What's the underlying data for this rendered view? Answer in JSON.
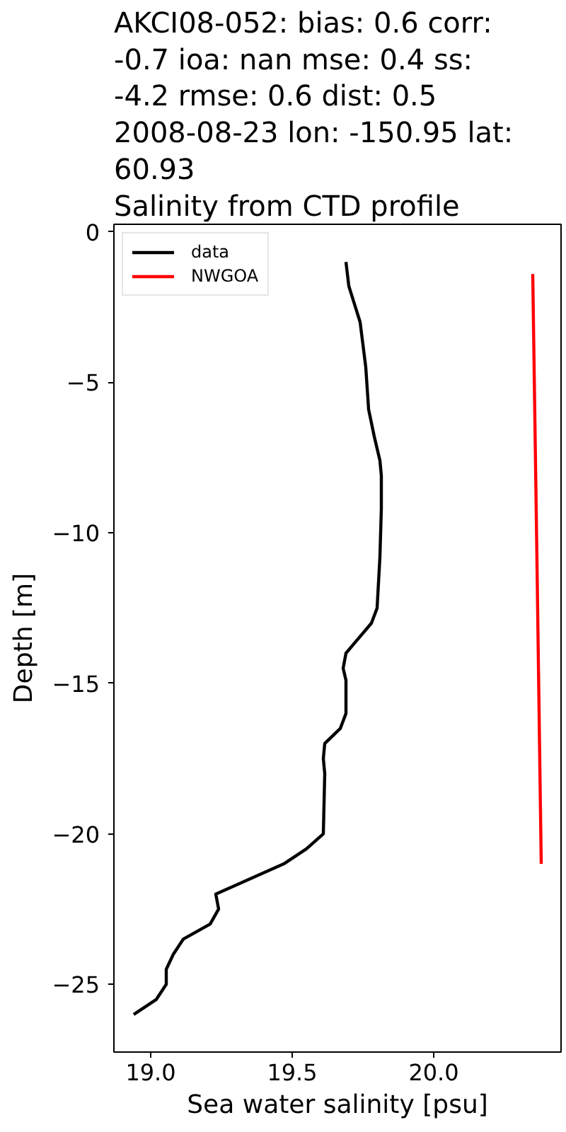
{
  "chart_data": {
    "type": "line",
    "title": "AKCI08-052: bias: 0.6  corr:\n-0.7  ioa: nan  mse: 0.4  ss:\n-4.2  rmse: 0.6  dist: 0.5\n2008-08-23 lon: -150.95 lat:\n60.93\nSalinity from CTD profile",
    "xlabel": "Sea water salinity [psu]",
    "ylabel": "Depth [m]",
    "series": [
      {
        "name": "data",
        "color": "#000000",
        "x": [
          19.69,
          19.7,
          19.715,
          19.74,
          19.76,
          19.77,
          19.79,
          19.81,
          19.815,
          19.815,
          19.81,
          19.8,
          19.78,
          19.69,
          19.68,
          19.69,
          19.69,
          19.67,
          19.615,
          19.61,
          19.615,
          19.61,
          19.55,
          19.47,
          19.23,
          19.24,
          19.21,
          19.115,
          19.08,
          19.055,
          19.055,
          19.02,
          18.94
        ],
        "values": [
          -1.0,
          -1.8,
          -2.25,
          -3.0,
          -4.5,
          -5.9,
          -6.8,
          -7.6,
          -8.1,
          -9.2,
          -10.8,
          -12.5,
          -13.0,
          -14.0,
          -14.5,
          -14.9,
          -16.0,
          -16.5,
          -17.0,
          -17.5,
          -18.0,
          -20.0,
          -20.5,
          -21.0,
          -22.0,
          -22.5,
          -23.0,
          -23.5,
          -24.0,
          -24.5,
          -25.0,
          -25.5,
          -26.0
        ]
      },
      {
        "name": "NWGOA",
        "color": "#ff0000",
        "x": [
          20.35,
          20.365,
          20.38
        ],
        "values": [
          -1.4,
          -11.0,
          -21.0
        ]
      }
    ],
    "xlim": [
      18.87,
      20.45
    ],
    "ylim": [
      -27.25,
      0.25
    ],
    "xticks": [
      {
        "value": 19.0,
        "label": "19.0"
      },
      {
        "value": 19.5,
        "label": "19.5"
      },
      {
        "value": 20.0,
        "label": "20.0"
      }
    ],
    "yticks": [
      0,
      -5,
      -10,
      -15,
      -20,
      -25
    ],
    "legend": "top left"
  }
}
